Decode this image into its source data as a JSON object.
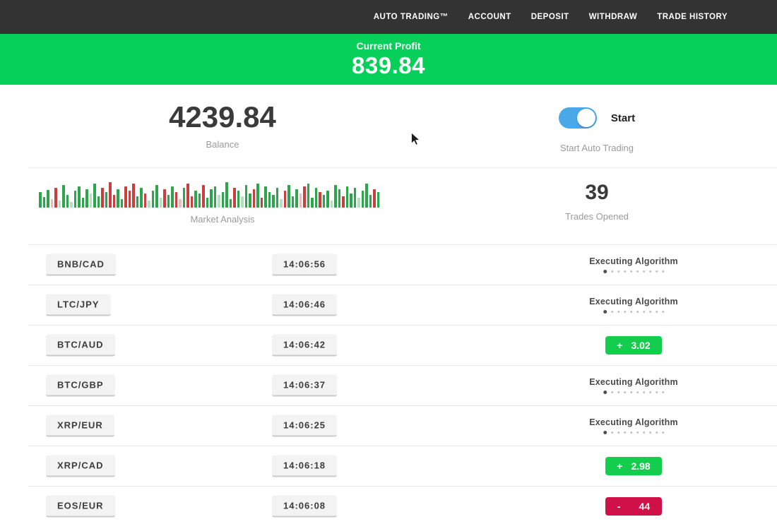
{
  "nav": {
    "items": [
      "AUTO TRADING™",
      "ACCOUNT",
      "DEPOSIT",
      "WITHDRAW",
      "TRADE HISTORY"
    ]
  },
  "profit_banner": {
    "label": "Current Profit",
    "value": "839.84"
  },
  "account": {
    "balance": "4239.84",
    "balance_label": "Balance",
    "toggle_label": "Start",
    "toggle_caption": "Start Auto Trading",
    "toggle_on": true
  },
  "market": {
    "label": "Market Analysis",
    "trades_opened": "39",
    "trades_label": "Trades Opened",
    "bars": [
      [
        22,
        "g"
      ],
      [
        15,
        "g"
      ],
      [
        25,
        "g"
      ],
      [
        12,
        "lr"
      ],
      [
        28,
        "r"
      ],
      [
        10,
        "lg"
      ],
      [
        32,
        "g"
      ],
      [
        18,
        "g"
      ],
      [
        8,
        "lg"
      ],
      [
        24,
        "g"
      ],
      [
        30,
        "g"
      ],
      [
        14,
        "g"
      ],
      [
        26,
        "g"
      ],
      [
        20,
        "lg"
      ],
      [
        34,
        "g"
      ],
      [
        16,
        "g"
      ],
      [
        28,
        "r"
      ],
      [
        22,
        "g"
      ],
      [
        36,
        "r"
      ],
      [
        18,
        "r"
      ],
      [
        26,
        "g"
      ],
      [
        12,
        "g"
      ],
      [
        30,
        "r"
      ],
      [
        24,
        "r"
      ],
      [
        34,
        "r"
      ],
      [
        16,
        "g"
      ],
      [
        28,
        "g"
      ],
      [
        20,
        "r"
      ],
      [
        10,
        "lg"
      ],
      [
        24,
        "g"
      ],
      [
        32,
        "g"
      ],
      [
        14,
        "lg"
      ],
      [
        26,
        "r"
      ],
      [
        18,
        "g"
      ],
      [
        30,
        "g"
      ],
      [
        22,
        "r"
      ],
      [
        12,
        "lr"
      ],
      [
        28,
        "g"
      ],
      [
        34,
        "r"
      ],
      [
        16,
        "r"
      ],
      [
        24,
        "g"
      ],
      [
        20,
        "g"
      ],
      [
        32,
        "r"
      ],
      [
        14,
        "g"
      ],
      [
        26,
        "g"
      ],
      [
        30,
        "g"
      ],
      [
        18,
        "lg"
      ],
      [
        22,
        "g"
      ],
      [
        36,
        "g"
      ],
      [
        12,
        "g"
      ],
      [
        28,
        "r"
      ],
      [
        24,
        "g"
      ],
      [
        16,
        "lg"
      ],
      [
        32,
        "g"
      ],
      [
        20,
        "g"
      ],
      [
        26,
        "r"
      ],
      [
        34,
        "g"
      ],
      [
        14,
        "r"
      ],
      [
        30,
        "g"
      ],
      [
        22,
        "g"
      ],
      [
        18,
        "g"
      ],
      [
        28,
        "g"
      ],
      [
        12,
        "lg"
      ],
      [
        24,
        "r"
      ],
      [
        32,
        "g"
      ],
      [
        16,
        "g"
      ],
      [
        26,
        "g"
      ],
      [
        20,
        "lr"
      ],
      [
        30,
        "r"
      ],
      [
        34,
        "g"
      ],
      [
        14,
        "g"
      ],
      [
        28,
        "g"
      ],
      [
        22,
        "r"
      ],
      [
        18,
        "g"
      ],
      [
        24,
        "g"
      ],
      [
        10,
        "lg"
      ],
      [
        32,
        "g"
      ],
      [
        26,
        "g"
      ],
      [
        16,
        "r"
      ],
      [
        30,
        "g"
      ],
      [
        20,
        "g"
      ],
      [
        28,
        "g"
      ],
      [
        14,
        "lg"
      ],
      [
        24,
        "g"
      ],
      [
        34,
        "g"
      ],
      [
        18,
        "g"
      ],
      [
        26,
        "r"
      ],
      [
        22,
        "g"
      ]
    ]
  },
  "trades": {
    "rows": [
      {
        "pair": "BNB/CAD",
        "time": "14:06:56",
        "status": "executing",
        "status_label": "Executing Algorithm"
      },
      {
        "pair": "LTC/JPY",
        "time": "14:06:46",
        "status": "executing",
        "status_label": "Executing Algorithm"
      },
      {
        "pair": "BTC/AUD",
        "time": "14:06:42",
        "status": "profit",
        "sign": "+",
        "value": "3.02"
      },
      {
        "pair": "BTC/GBP",
        "time": "14:06:37",
        "status": "executing",
        "status_label": "Executing Algorithm"
      },
      {
        "pair": "XRP/EUR",
        "time": "14:06:25",
        "status": "executing",
        "status_label": "Executing Algorithm"
      },
      {
        "pair": "XRP/CAD",
        "time": "14:06:18",
        "status": "profit",
        "sign": "+",
        "value": "2.98"
      },
      {
        "pair": "EOS/EUR",
        "time": "14:06:08",
        "status": "loss",
        "sign": "-",
        "value": "44"
      }
    ]
  },
  "colors": {
    "nav-bg": "#333333",
    "banner-green": "#06d05a",
    "toggle-blue": "#49a8e8",
    "badge-green": "#12ce4c",
    "badge-red": "#d01048",
    "bar-green": "#2ca64b",
    "bar-red": "#c8403e",
    "text-dark": "#3a3a3a",
    "text-gray": "#9b9b9b",
    "pill-bg": "#f3f3f3",
    "pill-border": "#c9c9c9",
    "row-line": "#e7e7e7"
  }
}
